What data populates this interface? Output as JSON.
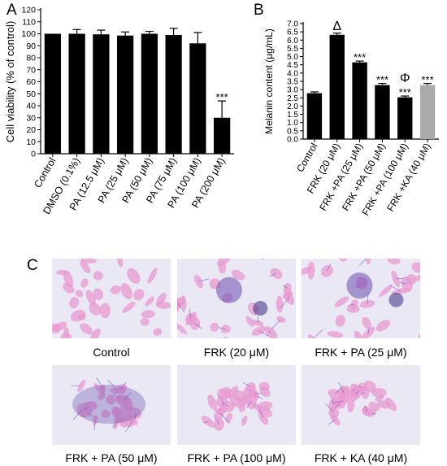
{
  "panel_labels": {
    "a": "A",
    "b": "B",
    "c": "C"
  },
  "chart_data": [
    {
      "type": "bar",
      "ylabel": "Cell viability (% of control)",
      "ylim": [
        0,
        120
      ],
      "yticks": [
        "0",
        "10",
        "20",
        "30",
        "40",
        "50",
        "60",
        "70",
        "80",
        "90",
        "100",
        "110",
        "120"
      ],
      "categories": [
        "Control",
        "DMSO (0.1%)",
        "PA (12.5 μM)",
        "PA (25 μM)",
        "PA (50 μM)",
        "PA (75 μM)",
        "PA (100 μM)",
        "PA (200 μM)"
      ],
      "values": [
        100,
        100,
        99.5,
        98.5,
        100,
        99,
        92,
        30
      ],
      "errors": [
        0,
        3.5,
        3.5,
        3,
        2,
        5.5,
        9,
        14
      ],
      "annotations": [
        "",
        "",
        "",
        "",
        "",
        "",
        "",
        "***"
      ],
      "bar_color": "#000000",
      "grid": false
    },
    {
      "type": "bar",
      "ylabel": "Melanin content (μg/mL)",
      "ylim": [
        0,
        7.0
      ],
      "yticks": [
        "0.0",
        "0.5",
        "1.0",
        "1.5",
        "2.0",
        "2.5",
        "3.0",
        "3.5",
        "4.0",
        "4.5",
        "5.0",
        "5.5",
        "6.0",
        "6.5",
        "7.0"
      ],
      "categories": [
        "Control",
        "FRK (20 μM)",
        "FRK +PA (25 μM)",
        "FRK +PA (50 μM)",
        "FRK +PA (100 μM)",
        "FRK +KA (40 μM)"
      ],
      "values": [
        2.78,
        6.32,
        4.65,
        3.27,
        2.53,
        3.27
      ],
      "errors": [
        0.08,
        0.1,
        0.08,
        0.1,
        0.08,
        0.1
      ],
      "annotations": [
        "",
        "Δ",
        "***",
        "***",
        "Φ\n***",
        "***"
      ],
      "colors": [
        "#000000",
        "#000000",
        "#000000",
        "#000000",
        "#000000",
        "#aaaaaa"
      ],
      "grid": false
    }
  ],
  "micrographs": [
    {
      "caption": "Control",
      "type": "dispersed"
    },
    {
      "caption": "FRK (20 μM)",
      "type": "dark-clusters"
    },
    {
      "caption": "FRK + PA (25 μM)",
      "type": "dark-clusters"
    },
    {
      "caption": "FRK + PA (50 μM)",
      "type": "dense-colony"
    },
    {
      "caption": "FRK + PA (100 μM)",
      "type": "colony"
    },
    {
      "caption": "FRK + KA (40 μM)",
      "type": "colony"
    }
  ],
  "colors": {
    "stain_pink": "#e89ad0",
    "stain_purple": "#6a4fb0",
    "background": "#e9e8f4"
  }
}
